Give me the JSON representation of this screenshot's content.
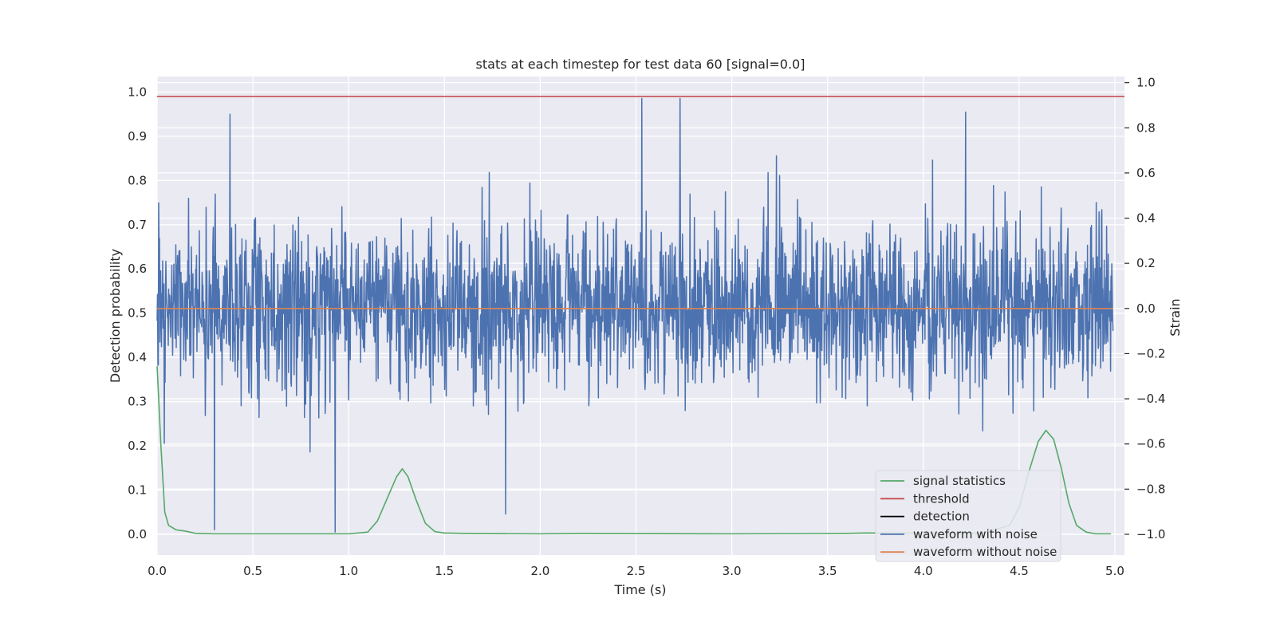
{
  "chart_data": {
    "type": "line",
    "title": "stats at each timestep for test data 60 [signal=0.0]",
    "xlabel": "Time (s)",
    "ylabel": "Detection probability",
    "y2label": "Strain",
    "xlim": [
      0.0,
      5.05
    ],
    "ylim": [
      -0.047,
      1.035
    ],
    "y2lim": [
      -1.092,
      1.027
    ],
    "xticks": [
      "0.0",
      "0.5",
      "1.0",
      "1.5",
      "2.0",
      "2.5",
      "3.0",
      "3.5",
      "4.0",
      "4.5",
      "5.0"
    ],
    "yticks": [
      "0.0",
      "0.1",
      "0.2",
      "0.3",
      "0.4",
      "0.5",
      "0.6",
      "0.7",
      "0.8",
      "0.9",
      "1.0"
    ],
    "y2ticks": [
      "−1.0",
      "−0.8",
      "−0.6",
      "−0.4",
      "−0.2",
      "0.0",
      "0.2",
      "0.4",
      "0.6",
      "0.8",
      "1.0"
    ],
    "grid": true,
    "legend_position": "lower-right",
    "colors": {
      "background": "#eaeaf2",
      "grid": "#ffffff",
      "signal_statistics": "#55a868",
      "threshold": "#c44e52",
      "detection": "#000000",
      "waveform_with_noise": "#4c72b0",
      "waveform_without_noise": "#dd8452"
    },
    "series": [
      {
        "name": "signal statistics",
        "axis": "left",
        "x": [
          0.0,
          0.02,
          0.04,
          0.06,
          0.1,
          0.15,
          0.2,
          0.3,
          0.5,
          1.0,
          1.1,
          1.15,
          1.2,
          1.25,
          1.28,
          1.31,
          1.35,
          1.4,
          1.45,
          1.5,
          1.6,
          2.0,
          2.2,
          3.0,
          3.6,
          3.7,
          4.3,
          4.45,
          4.5,
          4.55,
          4.6,
          4.64,
          4.68,
          4.72,
          4.76,
          4.8,
          4.85,
          4.9,
          4.98
        ],
        "y": [
          0.38,
          0.2,
          0.05,
          0.02,
          0.01,
          0.007,
          0.002,
          0.001,
          0.001,
          0.001,
          0.005,
          0.03,
          0.08,
          0.13,
          0.148,
          0.13,
          0.08,
          0.025,
          0.006,
          0.003,
          0.002,
          0.001,
          0.002,
          0.001,
          0.002,
          0.003,
          0.002,
          0.02,
          0.06,
          0.14,
          0.21,
          0.235,
          0.215,
          0.15,
          0.07,
          0.02,
          0.005,
          0.001,
          0.001
        ]
      },
      {
        "name": "threshold",
        "axis": "left",
        "x": [
          0.0,
          5.05
        ],
        "y": [
          0.99,
          0.99
        ]
      },
      {
        "name": "detection",
        "axis": "left",
        "x": [],
        "y": []
      },
      {
        "name": "waveform with noise",
        "axis": "right",
        "x_start": 0.0,
        "x_end": 4.99,
        "sigma": 0.18,
        "peaks": [
          [
            0.3,
            -0.98
          ],
          [
            0.38,
            0.86
          ],
          [
            0.93,
            -0.99
          ],
          [
            2.53,
            0.93
          ],
          [
            2.73,
            0.93
          ],
          [
            4.22,
            0.87
          ],
          [
            1.82,
            -0.91
          ]
        ]
      },
      {
        "name": "waveform without noise",
        "axis": "right",
        "x": [
          0.0,
          4.99
        ],
        "y": [
          0.0,
          0.0
        ]
      }
    ]
  }
}
